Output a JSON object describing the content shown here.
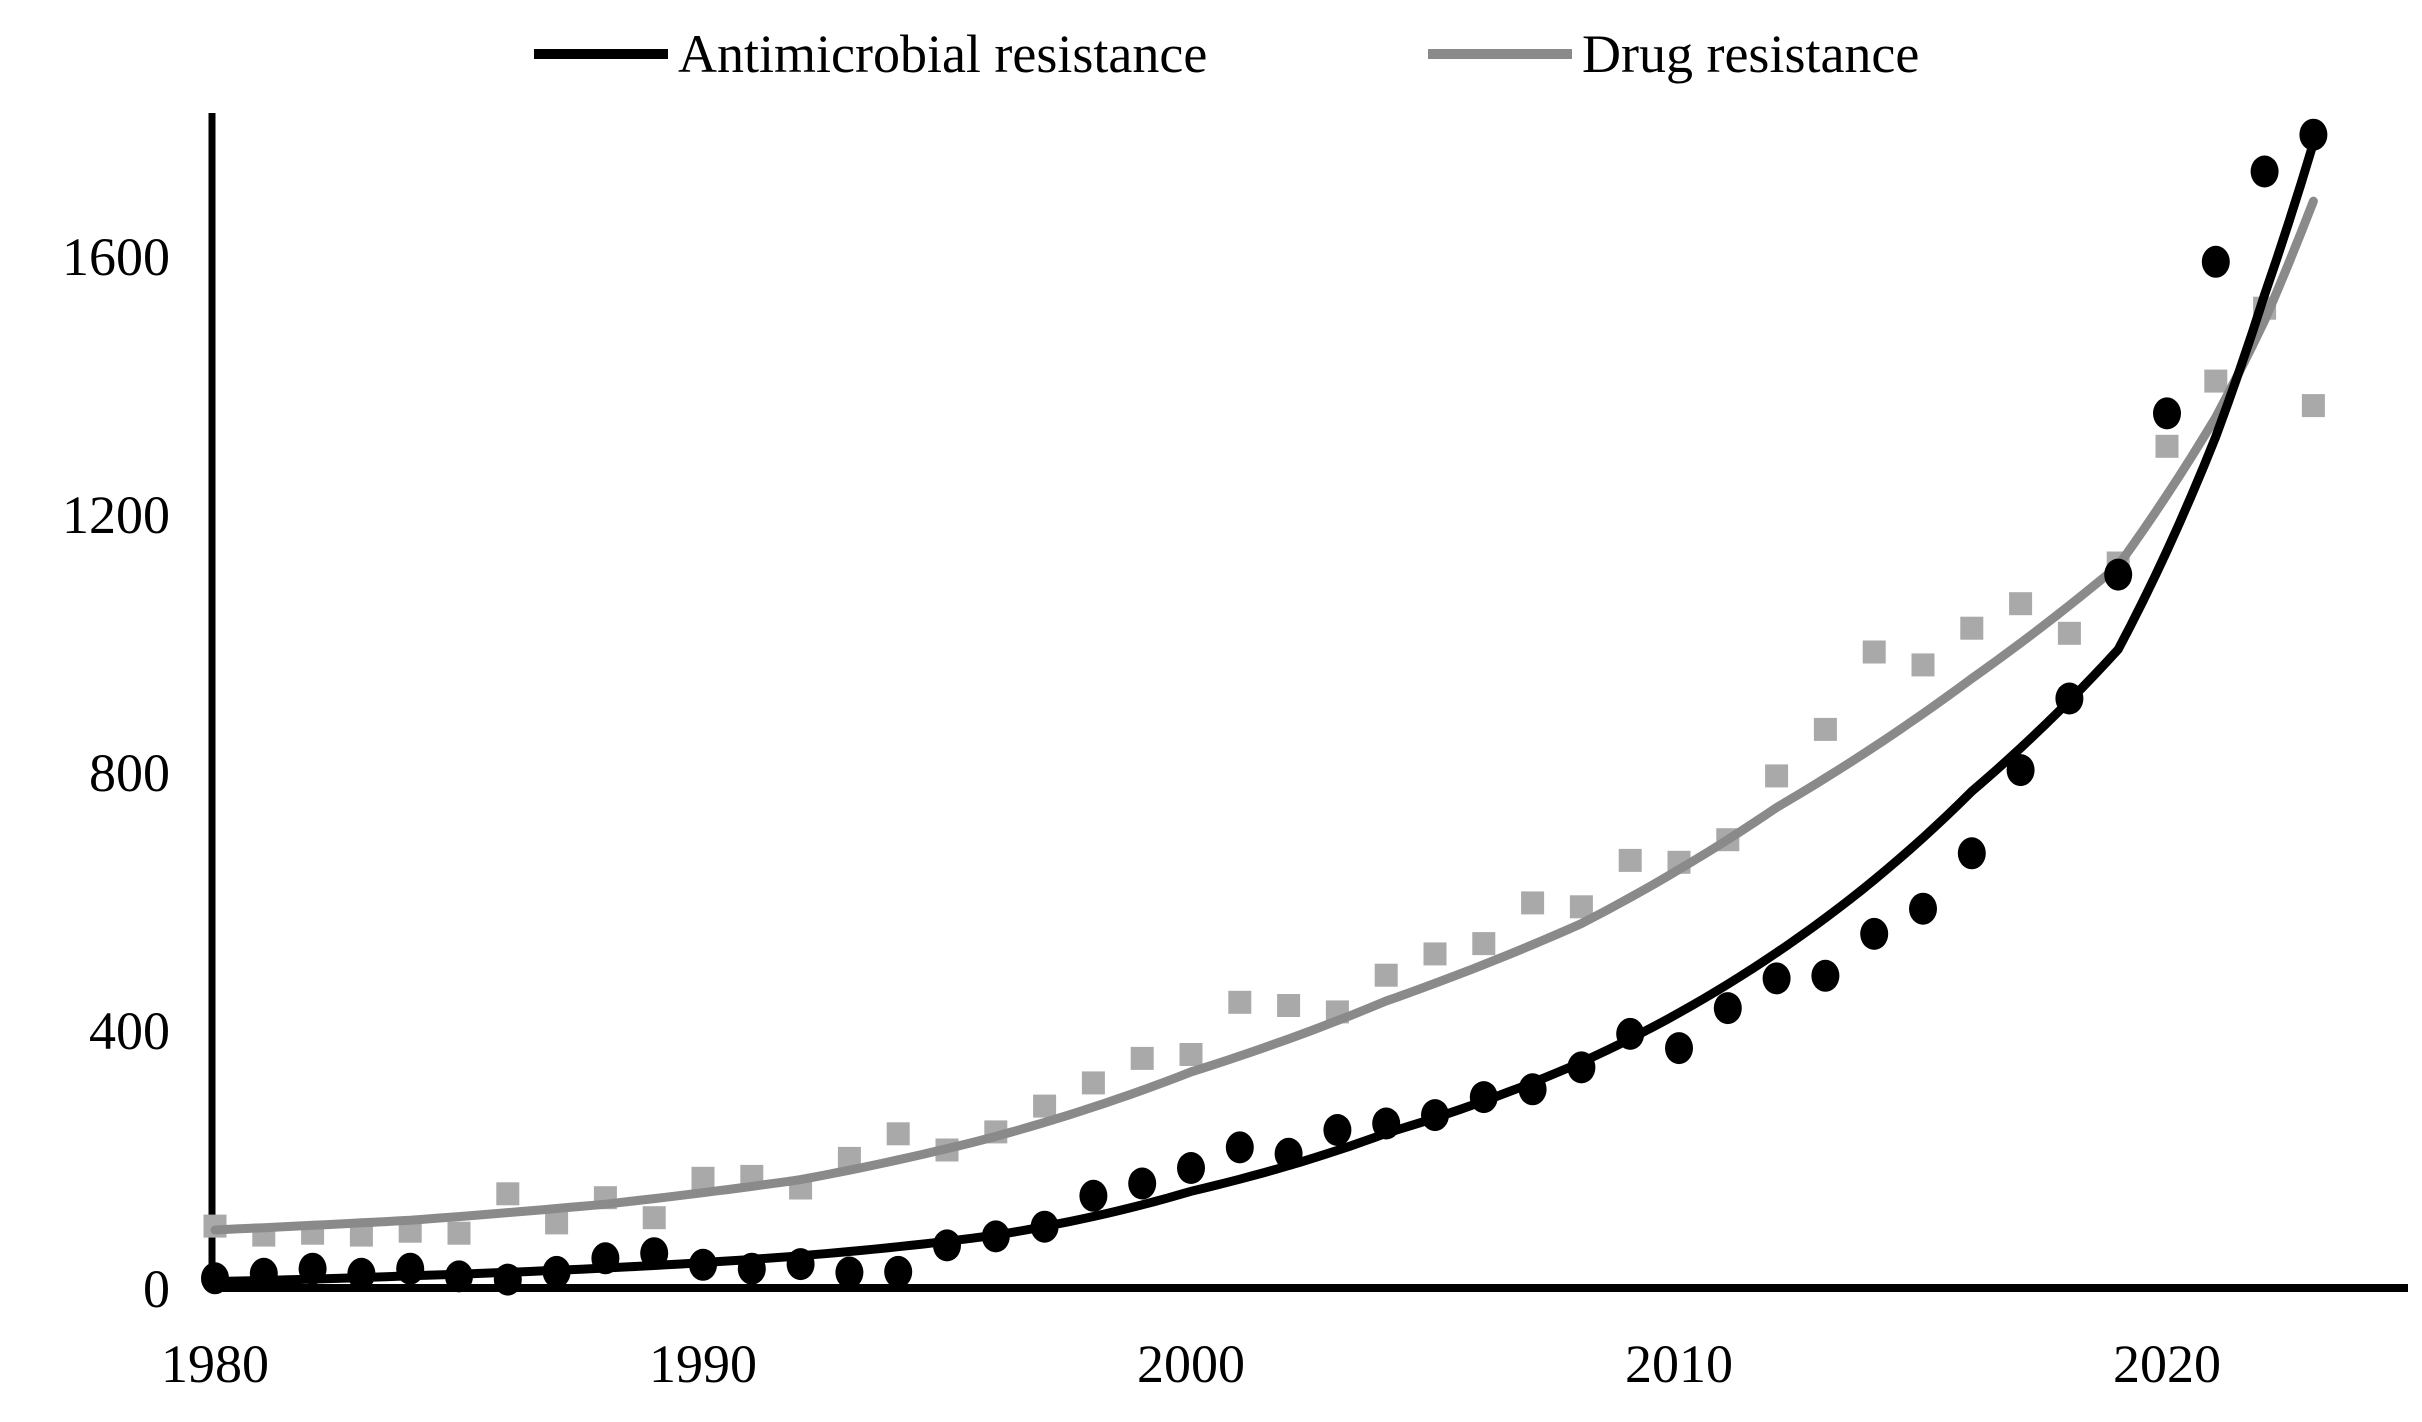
{
  "page": {
    "background": "#ffffff"
  },
  "chart_data": {
    "type": "scatter",
    "title": "",
    "xlabel": "",
    "ylabel": "",
    "grid": false,
    "legend_position": "top-center",
    "x_axis": {
      "ticks": [
        1980,
        1990,
        2000,
        2010,
        2020
      ],
      "range": [
        1980,
        2025
      ]
    },
    "y_axis": {
      "ticks": [
        0,
        400,
        800,
        1200,
        1600
      ],
      "range": [
        0,
        1818
      ]
    },
    "x": [
      1980,
      1981,
      1982,
      1983,
      1984,
      1985,
      1986,
      1987,
      1988,
      1989,
      1990,
      1991,
      1992,
      1993,
      1994,
      1995,
      1996,
      1997,
      1998,
      1999,
      2000,
      2001,
      2002,
      2003,
      2004,
      2005,
      2006,
      2007,
      2008,
      2009,
      2010,
      2011,
      2012,
      2013,
      2014,
      2015,
      2016,
      2017,
      2018,
      2019,
      2020,
      2021,
      2022,
      2023
    ],
    "series": [
      {
        "name": "Antimicrobial resistance",
        "marker": "circle",
        "color": "#000000",
        "values": [
          15,
          22,
          30,
          22,
          30,
          18,
          13,
          25,
          46,
          54,
          36,
          30,
          37,
          24,
          25,
          66,
          80,
          95,
          143,
          162,
          186,
          218,
          208,
          245,
          255,
          268,
          296,
          308,
          342,
          394,
          372,
          434,
          480,
          484,
          549,
          588,
          674,
          803,
          914,
          1106,
          1356,
          1591,
          1731,
          1788
        ],
        "trend": {
          "style": "solid",
          "color": "#000000",
          "anchors": [
            [
              1980,
              10
            ],
            [
              1984,
              19
            ],
            [
              1988,
              31
            ],
            [
              1992,
              50
            ],
            [
              1996,
              82
            ],
            [
              2000,
              150
            ],
            [
              2004,
              240
            ],
            [
              2008,
              350
            ],
            [
              2012,
              520
            ],
            [
              2016,
              770
            ],
            [
              2019,
              990
            ],
            [
              2021,
              1320
            ],
            [
              2022,
              1540
            ],
            [
              2023,
              1775
            ]
          ]
        }
      },
      {
        "name": "Drug resistance",
        "marker": "square",
        "color": "#a9a9a9",
        "values": [
          96,
          82,
          85,
          82,
          88,
          85,
          146,
          101,
          140,
          109,
          170,
          173,
          155,
          201,
          239,
          214,
          242,
          282,
          318,
          356,
          362,
          443,
          438,
          428,
          485,
          518,
          534,
          597,
          591,
          663,
          660,
          695,
          794,
          866,
          986,
          966,
          1023,
          1061,
          1015,
          1124,
          1305,
          1406,
          1519,
          1368
        ],
        "trend": {
          "style": "solid",
          "color": "#8a8a8a",
          "anchors": [
            [
              1980,
              90
            ],
            [
              1984,
              105
            ],
            [
              1988,
              130
            ],
            [
              1992,
              168
            ],
            [
              1996,
              235
            ],
            [
              2000,
              335
            ],
            [
              2004,
              445
            ],
            [
              2008,
              565
            ],
            [
              2012,
              745
            ],
            [
              2016,
              945
            ],
            [
              2019,
              1120
            ],
            [
              2021,
              1350
            ],
            [
              2022,
              1500
            ],
            [
              2023,
              1685
            ]
          ]
        }
      }
    ]
  }
}
